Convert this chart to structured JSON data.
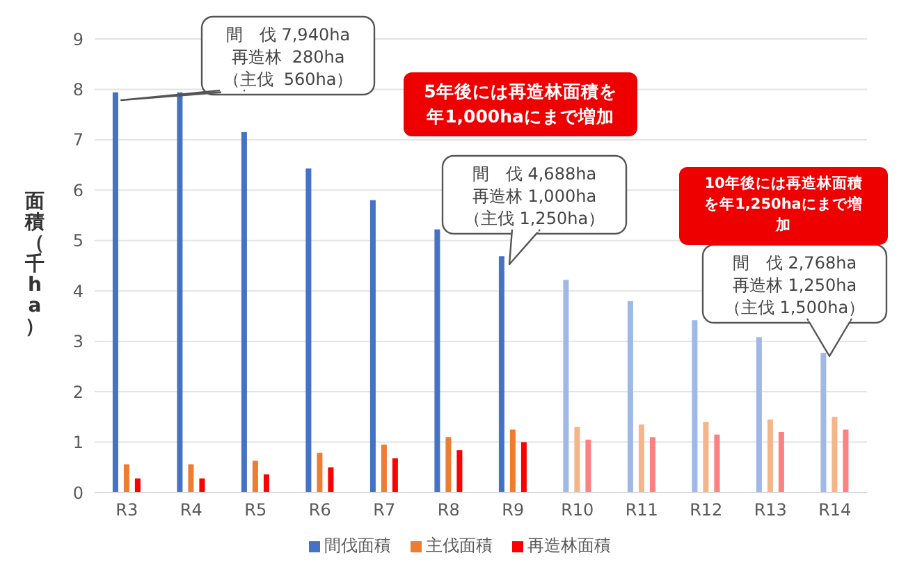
{
  "chart_data": {
    "type": "bar",
    "ylabel": "面積（千ha）",
    "categories": [
      "R3",
      "R4",
      "R5",
      "R6",
      "R7",
      "R8",
      "R9",
      "R10",
      "R11",
      "R12",
      "R13",
      "R14"
    ],
    "series": [
      {
        "name": "間伐面積",
        "color": "#4472c4",
        "colors": [
          "#4472c4",
          "#4472c4",
          "#4472c4",
          "#4472c4",
          "#4472c4",
          "#4472c4",
          "#4472c4",
          "#9fb8e6",
          "#9fb8e6",
          "#9fb8e6",
          "#9fb8e6",
          "#9fb8e6"
        ],
        "values": [
          7.94,
          7.94,
          7.15,
          6.43,
          5.8,
          5.22,
          4.69,
          4.22,
          3.8,
          3.42,
          3.08,
          2.77
        ]
      },
      {
        "name": "主伐面積",
        "color": "#ed7d31",
        "colors": [
          "#ed7d31",
          "#ed7d31",
          "#ed7d31",
          "#ed7d31",
          "#ed7d31",
          "#ed7d31",
          "#ed7d31",
          "#f5b58a",
          "#f5b58a",
          "#f5b58a",
          "#f5b58a",
          "#f5b58a"
        ],
        "values": [
          0.56,
          0.56,
          0.63,
          0.79,
          0.95,
          1.1,
          1.25,
          1.3,
          1.35,
          1.4,
          1.45,
          1.5
        ]
      },
      {
        "name": "再造林面積",
        "color": "#ff0000",
        "colors": [
          "#ff0000",
          "#ff0000",
          "#ff0000",
          "#ff0000",
          "#ff0000",
          "#ff0000",
          "#ff0000",
          "#ff8080",
          "#ff8080",
          "#ff8080",
          "#ff8080",
          "#ff8080"
        ],
        "values": [
          0.28,
          0.28,
          0.36,
          0.5,
          0.68,
          0.84,
          1.0,
          1.05,
          1.1,
          1.15,
          1.2,
          1.25
        ]
      }
    ],
    "ylim": [
      0,
      9
    ],
    "yticks": [
      0,
      1,
      2,
      3,
      4,
      5,
      6,
      7,
      8,
      9
    ],
    "grid": "y",
    "legend": "bottom",
    "annotations": [
      "間　伐 7,940ha\n再造林  280ha\n（主伐  560ha）",
      "間　伐 4,688ha\n再造林 1,000ha\n（主伐 1,250ha）",
      "間　伐 2,768ha\n再造林 1,250ha\n（主伐 1,500ha）",
      "5年後には再造林面積を年1,000haにまで増加",
      "10年後には再造林面積を年1,250haにまで増加"
    ]
  }
}
